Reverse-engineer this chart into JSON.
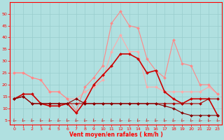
{
  "x": [
    0,
    1,
    2,
    3,
    4,
    5,
    6,
    7,
    8,
    9,
    10,
    11,
    12,
    13,
    14,
    15,
    16,
    17,
    18,
    19,
    20,
    21,
    22,
    23
  ],
  "lines": [
    {
      "y": [
        25,
        25,
        23,
        22,
        17,
        17,
        14,
        14,
        17,
        19,
        22,
        34,
        41,
        34,
        34,
        19,
        19,
        17,
        17,
        17,
        17,
        17,
        19,
        16
      ],
      "color": "#ffaaaa",
      "marker": "D",
      "lw": 0.8,
      "ms": 2.0
    },
    {
      "y": [
        25,
        25,
        23,
        22,
        17,
        17,
        14,
        9,
        19,
        23,
        28,
        46,
        51,
        45,
        44,
        31,
        26,
        23,
        39,
        29,
        28,
        20,
        20,
        16
      ],
      "color": "#ff8888",
      "marker": "D",
      "lw": 0.8,
      "ms": 2.0
    },
    {
      "y": [
        14,
        16,
        16,
        12,
        11,
        11,
        12,
        8,
        13,
        20,
        24,
        28,
        33,
        33,
        31,
        25,
        26,
        17,
        14,
        12,
        14,
        14,
        14,
        7
      ],
      "color": "#cc0000",
      "marker": "D",
      "lw": 1.2,
      "ms": 2.0
    },
    {
      "y": [
        14,
        15,
        12,
        12,
        12,
        12,
        12,
        12,
        12,
        12,
        12,
        12,
        12,
        12,
        12,
        12,
        12,
        12,
        12,
        12,
        12,
        12,
        14,
        14
      ],
      "color": "#aa0000",
      "marker": "D",
      "lw": 0.8,
      "ms": 2.0
    },
    {
      "y": [
        14,
        15,
        12,
        12,
        12,
        12,
        12,
        14,
        12,
        12,
        12,
        12,
        12,
        12,
        12,
        12,
        12,
        11,
        10,
        8,
        7,
        7,
        7,
        7
      ],
      "color": "#880000",
      "marker": "D",
      "lw": 0.8,
      "ms": 2.0
    }
  ],
  "xlim": [
    -0.5,
    23.5
  ],
  "ylim": [
    3,
    55
  ],
  "yticks": [
    5,
    10,
    15,
    20,
    25,
    30,
    35,
    40,
    45,
    50
  ],
  "xticks": [
    0,
    1,
    2,
    3,
    4,
    5,
    6,
    7,
    8,
    9,
    10,
    11,
    12,
    13,
    14,
    15,
    16,
    17,
    18,
    19,
    20,
    21,
    22,
    23
  ],
  "xlabel": "Vent moyen/en rafales ( km/h )",
  "bg_color": "#b0e0e0",
  "grid_color": "#99cccc",
  "axis_color": "#ff0000",
  "label_color": "#ff0000",
  "arrow_color": "#cc3333",
  "tick_fontsize": 4.5,
  "xlabel_fontsize": 5.5
}
